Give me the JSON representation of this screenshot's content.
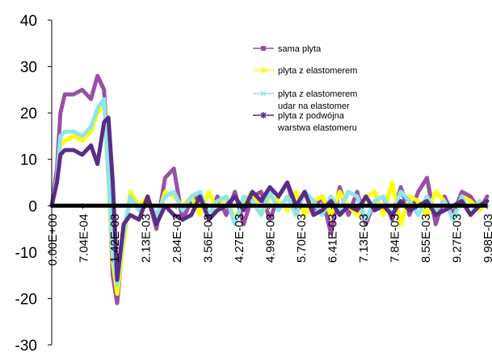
{
  "chart_data": {
    "type": "line",
    "title": "",
    "xlabel": "",
    "ylabel": "",
    "ylim": [
      -30,
      40
    ],
    "yticks": [
      "40",
      "30",
      "20",
      "10",
      "0",
      "-10",
      "-20",
      "-30"
    ],
    "xticks": [
      "0.00E+00",
      "7.04E-04",
      "1.42E-03",
      "2.13E-03",
      "2.84E-03",
      "3.56E-03",
      "4.27E-03",
      "4.99E-03",
      "5.70E-03",
      "6.41E-03",
      "7.13E-03",
      "7.84E-03",
      "8.55E-03",
      "9.27E-03",
      "9.98E-03"
    ],
    "xlim": [
      0,
      0.00998
    ],
    "grid": false,
    "legend_position": "top-right",
    "series": [
      {
        "name": "sama plyta",
        "color": "#9a4fa6",
        "marker": "square",
        "x": [
          0,
          0.00012,
          0.0002,
          0.0003,
          0.0005,
          0.0007,
          0.0009,
          0.00105,
          0.0012,
          0.0013,
          0.0014,
          0.0015,
          0.00165,
          0.0018,
          0.002,
          0.0022,
          0.0024,
          0.0026,
          0.0028,
          0.003,
          0.0032,
          0.0034,
          0.0036,
          0.0038,
          0.004,
          0.0042,
          0.0044,
          0.0046,
          0.0048,
          0.005,
          0.0052,
          0.0054,
          0.0056,
          0.0058,
          0.006,
          0.0062,
          0.0064,
          0.0066,
          0.0068,
          0.007,
          0.0072,
          0.0074,
          0.0076,
          0.0078,
          0.008,
          0.0082,
          0.0084,
          0.0086,
          0.0088,
          0.009,
          0.0092,
          0.0094,
          0.0096,
          0.0098,
          0.00998
        ],
        "y": [
          0,
          8,
          20,
          24,
          24,
          25,
          23,
          28,
          25,
          8,
          -15,
          -21,
          -6,
          2,
          -1,
          2,
          -5,
          6,
          8,
          -3,
          1,
          2,
          -3,
          2,
          -2,
          3,
          -4,
          2,
          3,
          -3,
          2,
          5,
          -2,
          3,
          -1,
          2,
          -6,
          4,
          -2,
          3,
          -4,
          1,
          2,
          -3,
          4,
          -2,
          3,
          6,
          -4,
          2,
          -2,
          3,
          2,
          -1,
          2
        ]
      },
      {
        "name": "plyta z elastomerem",
        "color": "#ffff00",
        "marker": "triangle",
        "x": [
          0,
          0.00012,
          0.0002,
          0.0003,
          0.0005,
          0.0007,
          0.0009,
          0.00105,
          0.0012,
          0.0013,
          0.0014,
          0.0015,
          0.00165,
          0.0018,
          0.002,
          0.0022,
          0.0024,
          0.0026,
          0.0028,
          0.003,
          0.0032,
          0.0034,
          0.0036,
          0.0038,
          0.004,
          0.0042,
          0.0044,
          0.0046,
          0.0048,
          0.005,
          0.0052,
          0.0054,
          0.0056,
          0.0058,
          0.006,
          0.0062,
          0.0064,
          0.0066,
          0.0068,
          0.007,
          0.0072,
          0.0074,
          0.0076,
          0.0078,
          0.008,
          0.0082,
          0.0084,
          0.0086,
          0.0088,
          0.009,
          0.0092,
          0.0094,
          0.0096,
          0.0098,
          0.00998
        ],
        "y": [
          0,
          5,
          13,
          14,
          15,
          14,
          16,
          20,
          22,
          5,
          -12,
          -19,
          -8,
          3,
          0,
          2,
          -3,
          3,
          2,
          0,
          2,
          -2,
          3,
          -1,
          2,
          -3,
          1,
          3,
          -2,
          2,
          1,
          -1,
          3,
          -2,
          1,
          2,
          -2,
          3,
          0,
          -2,
          2,
          3,
          -2,
          5,
          -4,
          2,
          1,
          -2,
          3,
          1,
          -3,
          2,
          1,
          -1,
          1
        ]
      },
      {
        "name": "plyta z elastomerem udar na elastomer",
        "color": "#8ee6ea",
        "marker": "x",
        "x": [
          0,
          0.00012,
          0.0002,
          0.0003,
          0.0005,
          0.0007,
          0.0009,
          0.00105,
          0.0012,
          0.0013,
          0.0014,
          0.0015,
          0.00165,
          0.0018,
          0.002,
          0.0022,
          0.0024,
          0.0026,
          0.0028,
          0.003,
          0.0032,
          0.0034,
          0.0036,
          0.0038,
          0.004,
          0.0042,
          0.0044,
          0.0046,
          0.0048,
          0.005,
          0.0052,
          0.0054,
          0.0056,
          0.0058,
          0.006,
          0.0062,
          0.0064,
          0.0066,
          0.0068,
          0.007,
          0.0072,
          0.0074,
          0.0076,
          0.0078,
          0.008,
          0.0082,
          0.0084,
          0.0086,
          0.0088,
          0.009,
          0.0092,
          0.0094,
          0.0096,
          0.0098,
          0.00998
        ],
        "y": [
          0,
          6,
          15,
          16,
          16,
          15,
          17,
          21,
          23,
          6,
          -10,
          -17,
          -6,
          2,
          -1,
          1,
          -2,
          2,
          3,
          -1,
          2,
          3,
          -2,
          1,
          2,
          -4,
          2,
          1,
          -2,
          3,
          -1,
          2,
          -2,
          3,
          1,
          -2,
          2,
          -1,
          3,
          2,
          -3,
          1,
          2,
          -2,
          3,
          1,
          -2,
          2,
          -1,
          1,
          -3,
          2,
          -2,
          1,
          0
        ]
      },
      {
        "name": "plyta z podwójna warstwa elastomeru",
        "color": "#5b2c86",
        "marker": "star",
        "x": [
          0,
          0.00012,
          0.0002,
          0.0003,
          0.0005,
          0.0007,
          0.0009,
          0.00105,
          0.0012,
          0.0013,
          0.0014,
          0.0015,
          0.00165,
          0.0018,
          0.002,
          0.0022,
          0.0024,
          0.0026,
          0.0028,
          0.003,
          0.0032,
          0.0034,
          0.0036,
          0.0038,
          0.004,
          0.0042,
          0.0044,
          0.0046,
          0.0048,
          0.005,
          0.0052,
          0.0054,
          0.0056,
          0.0058,
          0.006,
          0.0062,
          0.0064,
          0.0066,
          0.0068,
          0.007,
          0.0072,
          0.0074,
          0.0076,
          0.0078,
          0.008,
          0.0082,
          0.0084,
          0.0086,
          0.0088,
          0.009,
          0.0092,
          0.0094,
          0.0096,
          0.0098,
          0.00998
        ],
        "y": [
          0,
          5,
          11,
          12,
          12,
          11,
          13,
          9,
          18,
          19,
          5,
          -16,
          -4,
          -2,
          -3,
          2,
          -4,
          0,
          -2,
          -3,
          -2,
          2,
          -3,
          -1,
          0,
          2,
          -1,
          3,
          1,
          4,
          2,
          5,
          0,
          3,
          -2,
          -1,
          1,
          -2,
          0,
          -1,
          2,
          -1,
          0,
          -2,
          1,
          -1,
          0,
          1,
          -2,
          -1,
          0,
          1,
          -2,
          0,
          1
        ]
      }
    ]
  }
}
